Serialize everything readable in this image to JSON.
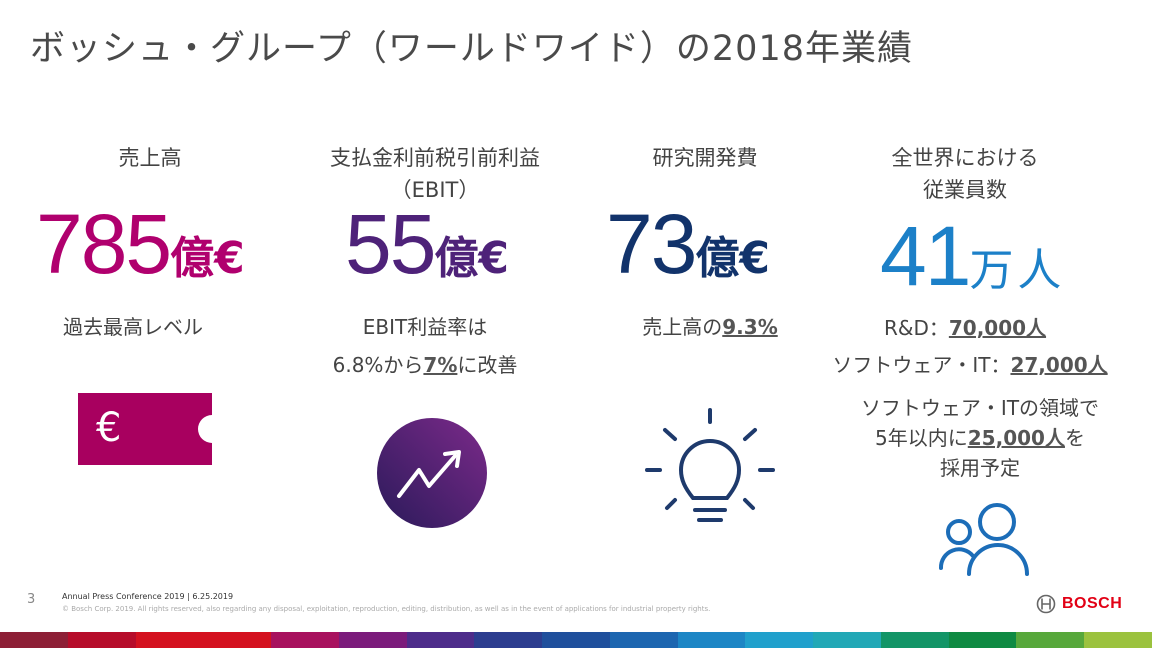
{
  "title": "ボッシュ・グループ（ワールドワイド）の2018年業績",
  "colors": {
    "sales": "#b0006e",
    "ebit": "#4e2279",
    "rd": "#12336b",
    "employees": "#1c80c8",
    "icon_navy": "#1e3a6c",
    "bosch_red": "#e20015"
  },
  "sales": {
    "label": "売上高",
    "value": "785",
    "unit": "億€",
    "note": "過去最高レベル",
    "icon": "euro-ticket-icon",
    "icon_glyph": "€"
  },
  "ebit": {
    "label_line1": "支払金利前税引前利益",
    "label_line2": "（EBIT）",
    "value": "55",
    "unit": "億€",
    "note_line1": "EBIT利益率は",
    "note_line2_pre": "6.8%から",
    "note_line2_hl": "7%",
    "note_line2_post": "に改善",
    "icon": "trend-up-icon"
  },
  "rd": {
    "label": "研究開発費",
    "value": "73",
    "unit": "億€",
    "note_pre": "売上高の",
    "note_hl": "9.3%",
    "icon": "lightbulb-icon"
  },
  "employees": {
    "label_line1": "全世界における",
    "label_line2": "従業員数",
    "value": "41",
    "unit": "万人",
    "rd_pre": "R&D：",
    "rd_hl": "70,000人",
    "sw_pre": "ソフトウェア・IT：",
    "sw_hl": "27,000人",
    "plan_line1": "ソフトウェア・ITの領域で",
    "plan_line2_pre": "5年以内に",
    "plan_line2_hl": "25,000人",
    "plan_line2_post": "を",
    "plan_line3": "採用予定",
    "icon": "people-icon"
  },
  "footer": {
    "page": "3",
    "conference": "Annual Press Conference 2019 | 6.25.2019",
    "copyright": "© Bosch Corp. 2019. All rights reserved, also regarding any disposal, exploitation, reproduction, editing, distribution, as well as in the event of applications for industrial property rights.",
    "brand": "BOSCH"
  },
  "stripe_colors": [
    "#8d1f36",
    "#b60c2a",
    "#d4111f",
    "#d4111f",
    "#a8115e",
    "#7b1b7b",
    "#4d2c8a",
    "#2c3d8f",
    "#1f4f9c",
    "#1d66b0",
    "#1d86c5",
    "#20a0cc",
    "#22a8b6",
    "#139567",
    "#0f8a43",
    "#57a83b",
    "#9bc23e"
  ]
}
